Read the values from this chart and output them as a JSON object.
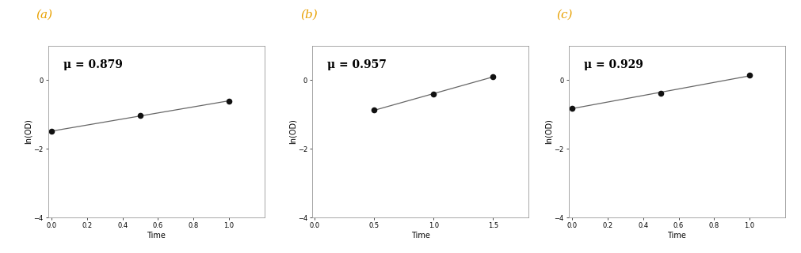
{
  "subplots": [
    {
      "label": "(a)",
      "mu_text": "μ = 0.879",
      "x_data": [
        0.0,
        0.5,
        1.0
      ],
      "y_data": [
        -1.5,
        -1.02,
        -0.62
      ],
      "xlim": [
        -0.02,
        1.2
      ],
      "ylim": [
        -4.0,
        1.0
      ],
      "xticks": [
        0.0,
        0.2,
        0.4,
        0.6,
        0.8,
        1.0
      ],
      "yticks": [
        -4,
        -2,
        0
      ]
    },
    {
      "label": "(b)",
      "mu_text": "μ = 0.957",
      "x_data": [
        0.5,
        1.0,
        1.5
      ],
      "y_data": [
        -0.88,
        -0.4,
        0.09
      ],
      "xlim": [
        -0.02,
        1.8
      ],
      "ylim": [
        -4.0,
        1.0
      ],
      "xticks": [
        0.0,
        0.5,
        1.0,
        1.5
      ],
      "yticks": [
        -4,
        -2,
        0
      ]
    },
    {
      "label": "(c)",
      "mu_text": "μ = 0.929",
      "x_data": [
        0.0,
        0.5,
        1.0
      ],
      "y_data": [
        -0.82,
        -0.38,
        0.13
      ],
      "xlim": [
        -0.02,
        1.2
      ],
      "ylim": [
        -4.0,
        1.0
      ],
      "xticks": [
        0.0,
        0.2,
        0.4,
        0.6,
        0.8,
        1.0
      ],
      "yticks": [
        -4,
        -2,
        0
      ]
    }
  ],
  "xlabel": "Time",
  "ylabel": "ln(OD)",
  "background_color": "#ffffff",
  "line_color": "#666666",
  "dot_color": "#111111",
  "label_color": "#e8a000",
  "label_fontsize": 11,
  "mu_fontsize": 10,
  "axis_label_fontsize": 7,
  "tick_fontsize": 6,
  "dot_size": 20,
  "linewidth": 0.9
}
